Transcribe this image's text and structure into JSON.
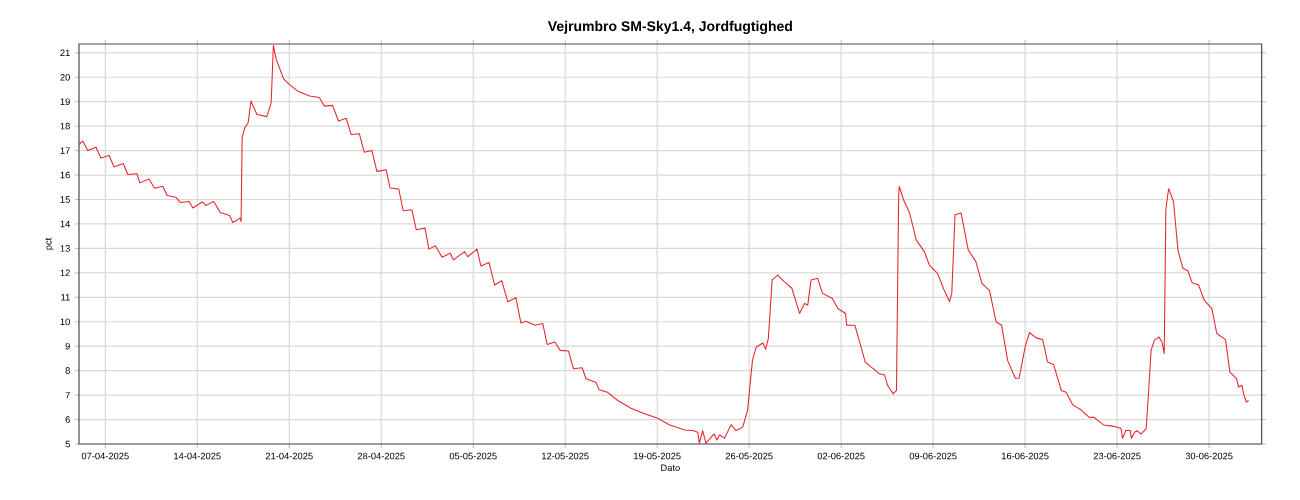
{
  "chart_data": {
    "type": "line",
    "title": "Vejrumbro SM-Sky1.4, Jordfugtighed",
    "xlabel": "Dato",
    "ylabel": "pct",
    "grid": true,
    "xlim": [
      "2025-04-05",
      "2025-07-04"
    ],
    "ylim": [
      5,
      21.36
    ],
    "xticks": [
      {
        "value": "2025-04-07",
        "label": "07-04-2025"
      },
      {
        "value": "2025-04-14",
        "label": "14-04-2025"
      },
      {
        "value": "2025-04-21",
        "label": "21-04-2025"
      },
      {
        "value": "2025-04-28",
        "label": "28-04-2025"
      },
      {
        "value": "2025-05-05",
        "label": "05-05-2025"
      },
      {
        "value": "2025-05-12",
        "label": "12-05-2025"
      },
      {
        "value": "2025-05-19",
        "label": "19-05-2025"
      },
      {
        "value": "2025-05-26",
        "label": "26-05-2025"
      },
      {
        "value": "2025-06-02",
        "label": "02-06-2025"
      },
      {
        "value": "2025-06-09",
        "label": "09-06-2025"
      },
      {
        "value": "2025-06-16",
        "label": "16-06-2025"
      },
      {
        "value": "2025-06-23",
        "label": "23-06-2025"
      },
      {
        "value": "2025-06-30",
        "label": "30-06-2025"
      }
    ],
    "yticks": [
      5,
      6,
      7,
      8,
      9,
      10,
      11,
      12,
      13,
      14,
      15,
      16,
      17,
      18,
      19,
      20,
      21
    ],
    "x": [
      "2025-04-05T00:00",
      "2025-04-05T07:00",
      "2025-04-05T16:00",
      "2025-04-06T07:00",
      "2025-04-06T16:00",
      "2025-04-07T07:00",
      "2025-04-07T16:00",
      "2025-04-08T09:00",
      "2025-04-08T17:00",
      "2025-04-09T10:00",
      "2025-04-09T15:00",
      "2025-04-10T08:00",
      "2025-04-10T18:00",
      "2025-04-11T09:00",
      "2025-04-11T17:00",
      "2025-04-12T09:00",
      "2025-04-12T17:00",
      "2025-04-13T09:00",
      "2025-04-13T16:00",
      "2025-04-14T09:00",
      "2025-04-14T16:00",
      "2025-04-15T06:00",
      "2025-04-15T18:00",
      "2025-04-16T11:00",
      "2025-04-16T17:00",
      "2025-04-17T06:00",
      "2025-04-17T08:00",
      "2025-04-17T10:00",
      "2025-04-17T15:00",
      "2025-04-17T21:00",
      "2025-04-18T02:00",
      "2025-04-18T13:00",
      "2025-04-19T07:00",
      "2025-04-19T15:00",
      "2025-04-19T19:00",
      "2025-04-20T00:00",
      "2025-04-20T14:00",
      "2025-04-21T00:00",
      "2025-04-21T15:00",
      "2025-04-22T13:00",
      "2025-04-23T07:00",
      "2025-04-23T16:00",
      "2025-04-24T07:00",
      "2025-04-24T18:00",
      "2025-04-25T08:00",
      "2025-04-25T17:00",
      "2025-04-26T08:00",
      "2025-04-26T17:00",
      "2025-04-27T07:00",
      "2025-04-27T16:00",
      "2025-04-28T09:00",
      "2025-04-28T16:00",
      "2025-04-29T08:00",
      "2025-04-29T16:00",
      "2025-04-30T08:00",
      "2025-04-30T16:00",
      "2025-05-01T08:00",
      "2025-05-01T15:00",
      "2025-05-02T03:00",
      "2025-05-02T15:00",
      "2025-05-03T06:00",
      "2025-05-03T12:00",
      "2025-05-04T08:00",
      "2025-05-04T14:00",
      "2025-05-05T07:00",
      "2025-05-05T14:00",
      "2025-05-06T05:00",
      "2025-05-06T15:00",
      "2025-05-07T04:00",
      "2025-05-07T15:00",
      "2025-05-08T06:00",
      "2025-05-08T15:00",
      "2025-05-09T00:00",
      "2025-05-09T17:00",
      "2025-05-10T07:00",
      "2025-05-10T15:00",
      "2025-05-11T05:00",
      "2025-05-11T15:00",
      "2025-05-12T06:00",
      "2025-05-12T15:00",
      "2025-05-13T07:00",
      "2025-05-13T14:00",
      "2025-05-14T08:00",
      "2025-05-14T14:00",
      "2025-05-15T05:00",
      "2025-05-16T00:00",
      "2025-05-17T00:00",
      "2025-05-18T01:00",
      "2025-05-19T01:00",
      "2025-05-19T22:00",
      "2025-05-21T02:00",
      "2025-05-21T17:00",
      "2025-05-22T02:00",
      "2025-05-22T05:00",
      "2025-05-22T11:00",
      "2025-05-22T17:00",
      "2025-05-23T08:00",
      "2025-05-23T13:00",
      "2025-05-23T18:00",
      "2025-05-24T03:00",
      "2025-05-24T15:00",
      "2025-05-25T00:00",
      "2025-05-25T12:00",
      "2025-05-25T21:00",
      "2025-05-26T06:00",
      "2025-05-26T13:00",
      "2025-05-27T01:00",
      "2025-05-27T06:00",
      "2025-05-27T11:00",
      "2025-05-27T18:00",
      "2025-05-28T04:00",
      "2025-05-28T16:00",
      "2025-05-29T06:00",
      "2025-05-29T20:00",
      "2025-05-30T05:00",
      "2025-05-30T11:00",
      "2025-05-30T17:00",
      "2025-05-31T05:00",
      "2025-05-31T14:00",
      "2025-06-01T08:00",
      "2025-06-01T18:00",
      "2025-06-02T08:00",
      "2025-06-02T10:00",
      "2025-06-03T01:00",
      "2025-06-03T20:00",
      "2025-06-04T22:00",
      "2025-06-05T07:00",
      "2025-06-05T13:00",
      "2025-06-05T23:00",
      "2025-06-06T05:00",
      "2025-06-06T09:00",
      "2025-06-06T10:00",
      "2025-06-06T18:00",
      "2025-06-07T05:00",
      "2025-06-07T17:00",
      "2025-06-08T08:00",
      "2025-06-08T17:00",
      "2025-06-09T08:00",
      "2025-06-09T20:00",
      "2025-06-10T06:00",
      "2025-06-10T10:00",
      "2025-06-10T16:00",
      "2025-06-11T03:00",
      "2025-06-11T16:00",
      "2025-06-12T06:00",
      "2025-06-12T17:00",
      "2025-06-13T07:00",
      "2025-06-13T19:00",
      "2025-06-14T05:00",
      "2025-06-14T16:00",
      "2025-06-15T06:00",
      "2025-06-15T13:00",
      "2025-06-16T00:00",
      "2025-06-16T08:00",
      "2025-06-16T20:00",
      "2025-06-17T08:00",
      "2025-06-17T17:00",
      "2025-06-18T04:00",
      "2025-06-18T18:00",
      "2025-06-19T03:00",
      "2025-06-19T15:00",
      "2025-06-20T06:00",
      "2025-06-20T21:00",
      "2025-06-21T06:00",
      "2025-06-21T23:00",
      "2025-06-22T19:00",
      "2025-06-23T07:00",
      "2025-06-23T10:00",
      "2025-06-23T16:00",
      "2025-06-24T00:00",
      "2025-06-24T02:00",
      "2025-06-24T08:00",
      "2025-06-24T12:00",
      "2025-06-24T20:00",
      "2025-06-25T05:00",
      "2025-06-25T10:00",
      "2025-06-25T14:00",
      "2025-06-25T20:00",
      "2025-06-26T04:00",
      "2025-06-26T10:00",
      "2025-06-26T14:00",
      "2025-06-26T17:00",
      "2025-06-26T22:00",
      "2025-06-27T07:00",
      "2025-06-27T15:00",
      "2025-06-28T00:00",
      "2025-06-28T09:00",
      "2025-06-28T17:00",
      "2025-06-29T05:00",
      "2025-06-29T15:00",
      "2025-06-30T05:00",
      "2025-06-30T14:00",
      "2025-07-01T06:00",
      "2025-07-01T14:00",
      "2025-07-02T02:00",
      "2025-07-02T06:00",
      "2025-07-02T12:00",
      "2025-07-02T15:00",
      "2025-07-02T20:00",
      "2025-07-03T00:00"
    ],
    "series": [
      {
        "color": "#e8262a",
        "values": [
          17.25,
          17.39,
          17.0,
          17.14,
          16.7,
          16.8,
          16.33,
          16.47,
          16.02,
          16.05,
          15.68,
          15.84,
          15.46,
          15.54,
          15.16,
          15.09,
          14.88,
          14.92,
          14.65,
          14.9,
          14.76,
          14.92,
          14.47,
          14.35,
          14.06,
          14.24,
          14.1,
          17.53,
          17.94,
          18.14,
          19.03,
          18.48,
          18.39,
          18.96,
          21.3,
          20.74,
          19.92,
          19.71,
          19.44,
          19.23,
          19.17,
          18.82,
          18.85,
          18.21,
          18.32,
          17.66,
          17.69,
          16.93,
          17.0,
          16.15,
          16.22,
          15.47,
          15.43,
          14.54,
          14.58,
          13.76,
          13.83,
          12.97,
          13.11,
          12.64,
          12.8,
          12.53,
          12.87,
          12.66,
          12.97,
          12.28,
          12.42,
          11.5,
          11.68,
          10.82,
          10.98,
          9.95,
          10.02,
          9.86,
          9.93,
          9.07,
          9.17,
          8.83,
          8.8,
          8.08,
          8.12,
          7.67,
          7.53,
          7.22,
          7.12,
          6.78,
          6.46,
          6.24,
          6.05,
          5.79,
          5.57,
          5.55,
          5.48,
          5.03,
          5.55,
          5.04,
          5.41,
          5.16,
          5.37,
          5.24,
          5.79,
          5.55,
          5.68,
          6.37,
          8.42,
          8.97,
          9.13,
          8.87,
          9.31,
          11.71,
          11.91,
          11.64,
          11.37,
          10.34,
          10.75,
          10.68,
          11.71,
          11.78,
          11.16,
          10.95,
          10.54,
          10.34,
          9.86,
          9.86,
          8.35,
          7.87,
          7.83,
          7.39,
          7.05,
          7.19,
          15.13,
          15.54,
          14.99,
          14.45,
          13.35,
          12.87,
          12.32,
          11.98,
          11.3,
          10.82,
          11.16,
          14.38,
          14.45,
          12.94,
          12.46,
          11.57,
          11.27,
          9.99,
          9.86,
          8.42,
          7.69,
          7.69,
          8.97,
          9.56,
          9.34,
          9.27,
          8.35,
          8.25,
          7.19,
          7.12,
          6.6,
          6.4,
          6.09,
          6.09,
          5.78,
          5.72,
          5.64,
          5.23,
          5.55,
          5.55,
          5.23,
          5.48,
          5.55,
          5.41,
          5.62,
          7.32,
          8.83,
          9.24,
          9.38,
          9.17,
          8.7,
          14.58,
          15.44,
          14.92,
          12.94,
          12.19,
          12.09,
          11.6,
          11.5,
          10.88,
          10.54,
          9.52,
          9.27,
          7.94,
          7.67,
          7.33,
          7.4,
          7.05,
          6.71,
          6.78
        ]
      }
    ]
  }
}
